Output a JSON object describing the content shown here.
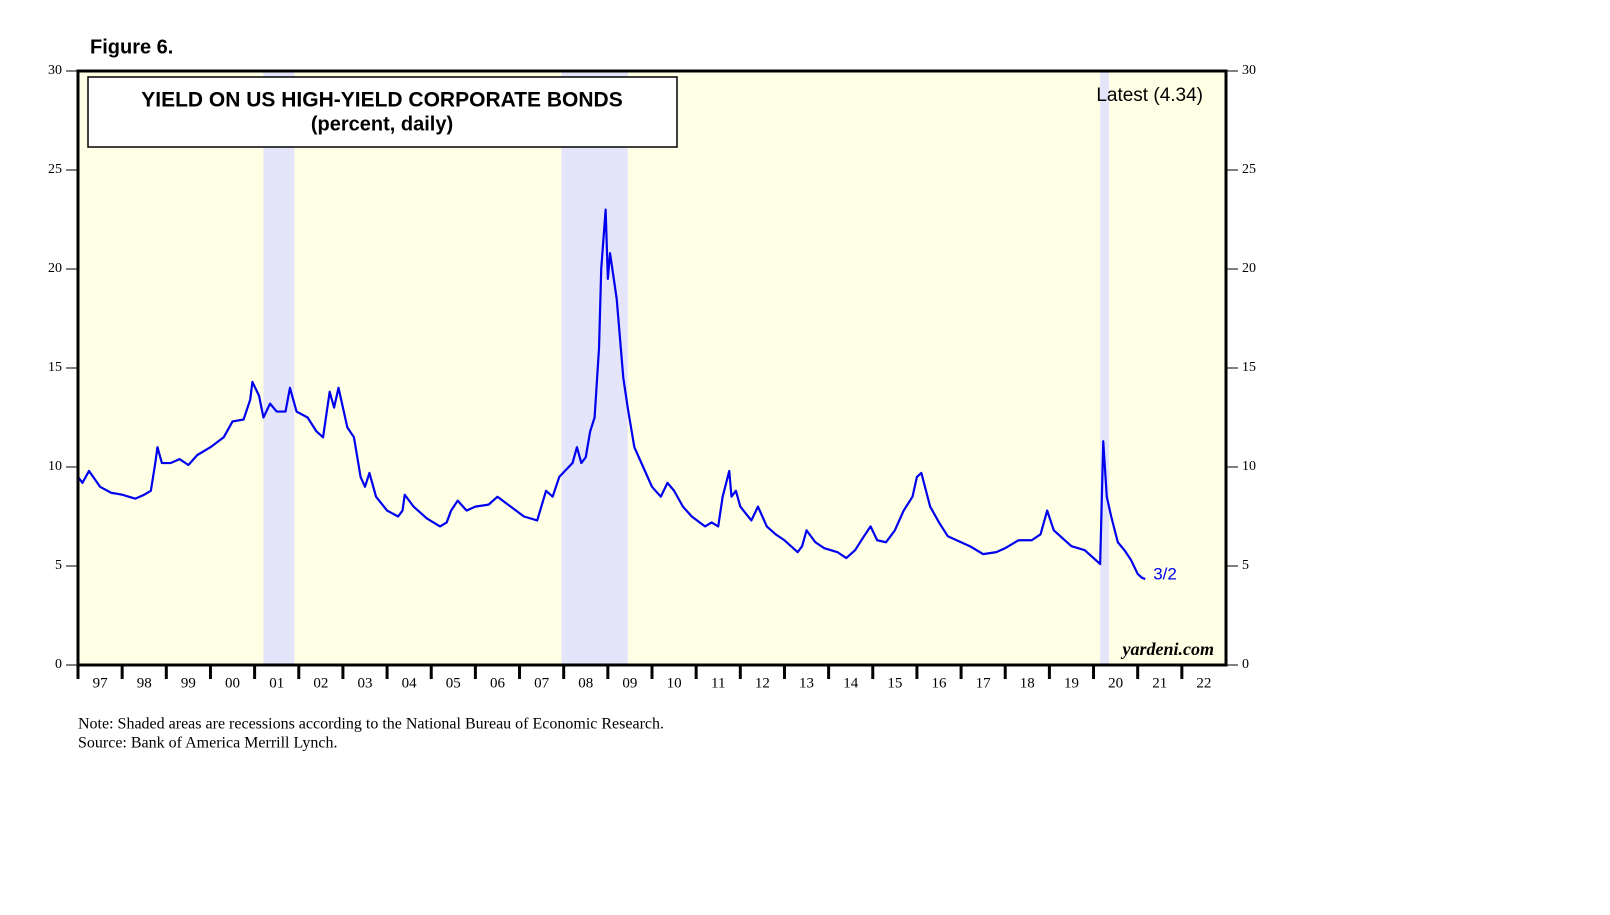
{
  "chart_data": {
    "type": "line",
    "figure_label": "Figure 6.",
    "title": "YIELD ON US HIGH-YIELD CORPORATE BONDS",
    "subtitle": "(percent, daily)",
    "latest_label": "Latest (4.34)",
    "end_label": "3/2",
    "watermark": "yardeni.com",
    "notes": [
      "Note: Shaded areas are recessions according to the National Bureau of Economic Research.",
      "Source: Bank of America Merrill Lynch."
    ],
    "color": "#0000ee",
    "background_color": "#ffffe6",
    "recession_color": "#e4e4fa",
    "recessions": [
      [
        2001.2,
        2001.9
      ],
      [
        2007.95,
        2009.45
      ],
      [
        2020.15,
        2020.35
      ]
    ],
    "xlim": [
      1997,
      2023
    ],
    "xticks": [
      {
        "value": 1997,
        "label": "97"
      },
      {
        "value": 1998,
        "label": "98"
      },
      {
        "value": 1999,
        "label": "99"
      },
      {
        "value": 2000,
        "label": "00"
      },
      {
        "value": 2001,
        "label": "01"
      },
      {
        "value": 2002,
        "label": "02"
      },
      {
        "value": 2003,
        "label": "03"
      },
      {
        "value": 2004,
        "label": "04"
      },
      {
        "value": 2005,
        "label": "05"
      },
      {
        "value": 2006,
        "label": "06"
      },
      {
        "value": 2007,
        "label": "07"
      },
      {
        "value": 2008,
        "label": "08"
      },
      {
        "value": 2009,
        "label": "09"
      },
      {
        "value": 2010,
        "label": "10"
      },
      {
        "value": 2011,
        "label": "11"
      },
      {
        "value": 2012,
        "label": "12"
      },
      {
        "value": 2013,
        "label": "13"
      },
      {
        "value": 2014,
        "label": "14"
      },
      {
        "value": 2015,
        "label": "15"
      },
      {
        "value": 2016,
        "label": "16"
      },
      {
        "value": 2017,
        "label": "17"
      },
      {
        "value": 2018,
        "label": "18"
      },
      {
        "value": 2019,
        "label": "19"
      },
      {
        "value": 2020,
        "label": "20"
      },
      {
        "value": 2021,
        "label": "21"
      },
      {
        "value": 2022,
        "label": "22"
      }
    ],
    "ylim": [
      0,
      30
    ],
    "yticks": [
      0,
      5,
      10,
      15,
      20,
      25,
      30
    ],
    "y2lim": [
      0,
      30
    ],
    "y2ticks": [
      0,
      5,
      10,
      15,
      20,
      25,
      30
    ],
    "x": [
      1997.0,
      1997.1,
      1997.25,
      1997.5,
      1997.75,
      1998.0,
      1998.3,
      1998.5,
      1998.65,
      1998.75,
      1998.8,
      1998.9,
      1999.1,
      1999.3,
      1999.5,
      1999.7,
      2000.0,
      2000.3,
      2000.5,
      2000.75,
      2000.9,
      2000.95,
      2001.1,
      2001.2,
      2001.35,
      2001.5,
      2001.7,
      2001.8,
      2001.95,
      2002.2,
      2002.4,
      2002.55,
      2002.7,
      2002.8,
      2002.9,
      2003.1,
      2003.25,
      2003.4,
      2003.5,
      2003.6,
      2003.75,
      2004.0,
      2004.25,
      2004.35,
      2004.4,
      2004.6,
      2004.9,
      2005.2,
      2005.35,
      2005.45,
      2005.6,
      2005.8,
      2006.0,
      2006.3,
      2006.5,
      2006.8,
      2007.1,
      2007.4,
      2007.6,
      2007.75,
      2007.9,
      2008.2,
      2008.3,
      2008.4,
      2008.5,
      2008.6,
      2008.7,
      2008.8,
      2008.85,
      2008.95,
      2009.0,
      2009.05,
      2009.2,
      2009.35,
      2009.45,
      2009.6,
      2009.8,
      2010.0,
      2010.2,
      2010.35,
      2010.5,
      2010.7,
      2010.9,
      2011.2,
      2011.35,
      2011.5,
      2011.6,
      2011.75,
      2011.8,
      2011.9,
      2012.0,
      2012.25,
      2012.4,
      2012.6,
      2012.8,
      2013.0,
      2013.3,
      2013.4,
      2013.5,
      2013.7,
      2013.9,
      2014.2,
      2014.4,
      2014.6,
      2014.8,
      2014.95,
      2015.1,
      2015.3,
      2015.5,
      2015.7,
      2015.9,
      2016.0,
      2016.1,
      2016.3,
      2016.5,
      2016.7,
      2016.9,
      2017.2,
      2017.5,
      2017.8,
      2018.0,
      2018.3,
      2018.6,
      2018.8,
      2018.95,
      2019.1,
      2019.3,
      2019.5,
      2019.8,
      2020.0,
      2020.15,
      2020.22,
      2020.3,
      2020.4,
      2020.55,
      2020.7,
      2020.85,
      2021.0,
      2021.1,
      2021.17
    ],
    "values": [
      9.5,
      9.2,
      9.8,
      9.0,
      8.7,
      8.6,
      8.4,
      8.6,
      8.8,
      10.2,
      11.0,
      10.2,
      10.2,
      10.4,
      10.1,
      10.6,
      11.0,
      11.5,
      12.3,
      12.4,
      13.4,
      14.3,
      13.6,
      12.5,
      13.2,
      12.8,
      12.8,
      14.0,
      12.8,
      12.5,
      11.8,
      11.5,
      13.8,
      13.0,
      14.0,
      12.0,
      11.5,
      9.5,
      9.0,
      9.7,
      8.5,
      7.8,
      7.5,
      7.8,
      8.6,
      8.0,
      7.4,
      7.0,
      7.2,
      7.8,
      8.3,
      7.8,
      8.0,
      8.1,
      8.5,
      8.0,
      7.5,
      7.3,
      8.8,
      8.5,
      9.5,
      10.2,
      11.0,
      10.2,
      10.5,
      11.8,
      12.5,
      16.0,
      20.0,
      23.0,
      19.5,
      20.8,
      18.5,
      14.5,
      13.0,
      11.0,
      10.0,
      9.0,
      8.5,
      9.2,
      8.8,
      8.0,
      7.5,
      7.0,
      7.2,
      7.0,
      8.5,
      9.8,
      8.5,
      8.8,
      8.0,
      7.3,
      8.0,
      7.0,
      6.6,
      6.3,
      5.7,
      6.0,
      6.8,
      6.2,
      5.9,
      5.7,
      5.4,
      5.8,
      6.5,
      7.0,
      6.3,
      6.2,
      6.8,
      7.8,
      8.5,
      9.5,
      9.7,
      8.0,
      7.2,
      6.5,
      6.3,
      6.0,
      5.6,
      5.7,
      5.9,
      6.3,
      6.3,
      6.6,
      7.8,
      6.8,
      6.4,
      6.0,
      5.8,
      5.4,
      5.1,
      11.3,
      8.5,
      7.5,
      6.2,
      5.8,
      5.3,
      4.6,
      4.4,
      4.34
    ]
  }
}
